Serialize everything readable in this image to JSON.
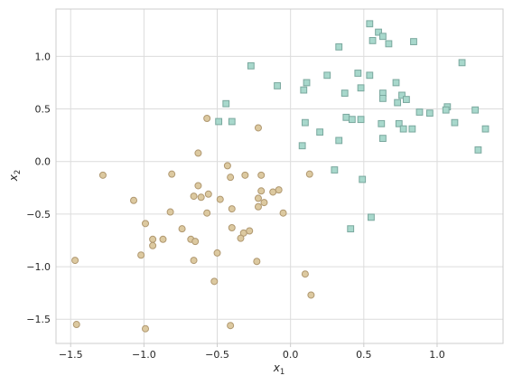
{
  "chart_data": {
    "type": "scatter",
    "title": "",
    "xlabel": "x",
    "xlabel_sub": "1",
    "ylabel": "x",
    "ylabel_sub": "2",
    "xlim": [
      -1.6,
      1.45
    ],
    "ylim": [
      -1.73,
      1.45
    ],
    "xticks": [
      -1.5,
      -1.0,
      -0.5,
      0.0,
      0.5,
      1.0
    ],
    "xtick_labels": [
      "−1.5",
      "−1.0",
      "−0.5",
      "0.0",
      "0.5",
      "1.0"
    ],
    "yticks": [
      -1.5,
      -1.0,
      -0.5,
      0.0,
      0.5,
      1.0
    ],
    "ytick_labels": [
      "−1.5",
      "−1.0",
      "−0.5",
      "0.0",
      "0.5",
      "1.0"
    ],
    "grid": true,
    "series": [
      {
        "marker": "square",
        "color": "#a8d8cc",
        "edge": "#7aa89e",
        "points": [
          [
            -0.27,
            0.91
          ],
          [
            -0.09,
            0.72
          ],
          [
            0.33,
            1.09
          ],
          [
            0.54,
            1.31
          ],
          [
            0.6,
            1.23
          ],
          [
            0.63,
            1.19
          ],
          [
            0.56,
            1.15
          ],
          [
            0.67,
            1.12
          ],
          [
            0.84,
            1.14
          ],
          [
            1.17,
            0.94
          ],
          [
            0.25,
            0.82
          ],
          [
            0.46,
            0.84
          ],
          [
            0.54,
            0.82
          ],
          [
            0.72,
            0.75
          ],
          [
            0.11,
            0.75
          ],
          [
            0.48,
            0.7
          ],
          [
            0.09,
            0.68
          ],
          [
            0.37,
            0.65
          ],
          [
            0.63,
            0.65
          ],
          [
            0.76,
            0.63
          ],
          [
            0.63,
            0.6
          ],
          [
            0.73,
            0.56
          ],
          [
            0.79,
            0.59
          ],
          [
            -0.44,
            0.55
          ],
          [
            1.07,
            0.52
          ],
          [
            1.06,
            0.49
          ],
          [
            1.26,
            0.49
          ],
          [
            0.88,
            0.47
          ],
          [
            0.95,
            0.46
          ],
          [
            0.38,
            0.42
          ],
          [
            0.42,
            0.4
          ],
          [
            0.48,
            0.4
          ],
          [
            -0.49,
            0.38
          ],
          [
            -0.4,
            0.38
          ],
          [
            0.1,
            0.37
          ],
          [
            0.62,
            0.36
          ],
          [
            0.74,
            0.36
          ],
          [
            1.12,
            0.37
          ],
          [
            0.77,
            0.31
          ],
          [
            0.83,
            0.31
          ],
          [
            1.33,
            0.31
          ],
          [
            0.2,
            0.28
          ],
          [
            0.33,
            0.2
          ],
          [
            0.63,
            0.22
          ],
          [
            0.08,
            0.15
          ],
          [
            1.28,
            0.11
          ],
          [
            0.3,
            -0.08
          ],
          [
            0.49,
            -0.17
          ],
          [
            0.55,
            -0.53
          ],
          [
            0.41,
            -0.64
          ]
        ]
      },
      {
        "marker": "circle",
        "color": "#dcc9a0",
        "edge": "#b09870",
        "points": [
          [
            -0.57,
            0.41
          ],
          [
            -0.22,
            0.32
          ],
          [
            -0.63,
            0.08
          ],
          [
            -0.43,
            -0.04
          ],
          [
            -1.28,
            -0.13
          ],
          [
            -0.81,
            -0.12
          ],
          [
            -0.2,
            -0.13
          ],
          [
            -0.31,
            -0.13
          ],
          [
            -0.41,
            -0.15
          ],
          [
            0.13,
            -0.12
          ],
          [
            -0.66,
            -0.33
          ],
          [
            -0.56,
            -0.31
          ],
          [
            -0.2,
            -0.28
          ],
          [
            -0.12,
            -0.29
          ],
          [
            -0.08,
            -0.27
          ],
          [
            -0.48,
            -0.36
          ],
          [
            -0.61,
            -0.34
          ],
          [
            -0.63,
            -0.23
          ],
          [
            -0.22,
            -0.35
          ],
          [
            -0.18,
            -0.39
          ],
          [
            -1.07,
            -0.37
          ],
          [
            -0.82,
            -0.48
          ],
          [
            -0.57,
            -0.49
          ],
          [
            -0.05,
            -0.49
          ],
          [
            -0.22,
            -0.43
          ],
          [
            -0.4,
            -0.45
          ],
          [
            -0.99,
            -0.59
          ],
          [
            -0.74,
            -0.64
          ],
          [
            -0.4,
            -0.63
          ],
          [
            -0.32,
            -0.68
          ],
          [
            -0.28,
            -0.66
          ],
          [
            -0.34,
            -0.73
          ],
          [
            -0.94,
            -0.74
          ],
          [
            -0.87,
            -0.74
          ],
          [
            -0.68,
            -0.74
          ],
          [
            -0.65,
            -0.76
          ],
          [
            -0.94,
            -0.8
          ],
          [
            -1.02,
            -0.89
          ],
          [
            -0.5,
            -0.87
          ],
          [
            -1.47,
            -0.94
          ],
          [
            -0.66,
            -0.94
          ],
          [
            -0.23,
            -0.95
          ],
          [
            0.1,
            -1.07
          ],
          [
            -0.52,
            -1.14
          ],
          [
            0.14,
            -1.27
          ],
          [
            -1.46,
            -1.55
          ],
          [
            -0.41,
            -1.56
          ],
          [
            -0.99,
            -1.59
          ]
        ]
      }
    ]
  }
}
